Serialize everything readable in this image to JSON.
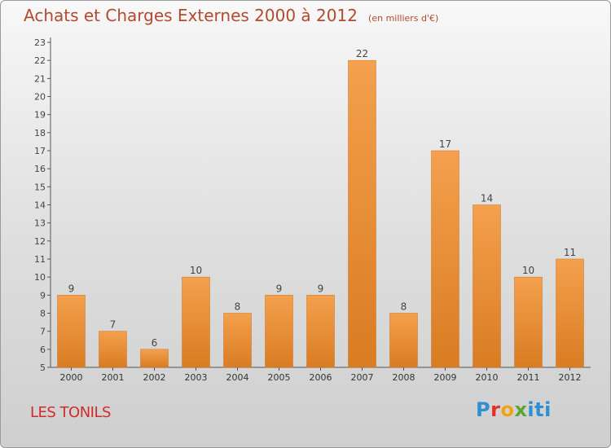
{
  "header": {
    "title": "Achats et Charges Externes 2000 à 2012",
    "unit": "(en milliers d'€)"
  },
  "commune": "LES TONILS",
  "logo": {
    "text": "Proxiti",
    "color_p": "#2e8fd1",
    "color_r": "#e2312b",
    "color_o": "#f2a20f",
    "color_x": "#58a734",
    "color_iti": "#2e8fd1"
  },
  "colors": {
    "bar_light": "#f4a04e",
    "bar_dark": "#d97c22",
    "title": "#b14a2e",
    "commune": "#d12b2b"
  },
  "chart_data": {
    "type": "bar",
    "title": "Achats et Charges Externes 2000 à 2012",
    "subtitle": "(en milliers d'€)",
    "categories": [
      "2000",
      "2001",
      "2002",
      "2003",
      "2004",
      "2005",
      "2006",
      "2007",
      "2008",
      "2009",
      "2010",
      "2011",
      "2012"
    ],
    "values": [
      9,
      7,
      6,
      10,
      8,
      9,
      9,
      22,
      8,
      17,
      14,
      10,
      11
    ],
    "ylim": [
      5,
      23
    ],
    "yticks": [
      5,
      6,
      7,
      8,
      9,
      10,
      11,
      12,
      13,
      14,
      15,
      16,
      17,
      18,
      19,
      20,
      21,
      22,
      23
    ],
    "grid": false,
    "data_labels": true
  }
}
